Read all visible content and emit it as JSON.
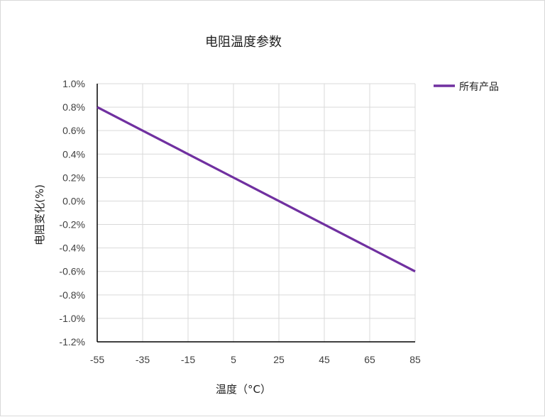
{
  "chart_data": {
    "type": "line",
    "title": "电阻温度参数",
    "xlabel": "温度（°C）",
    "ylabel": "电阻变化(%)",
    "x": [
      -55,
      -35,
      -15,
      5,
      25,
      45,
      65,
      85
    ],
    "x_tick_labels": [
      "-55",
      "-35",
      "-15",
      "5",
      "25",
      "45",
      "65",
      "85"
    ],
    "xlim": [
      -55,
      85
    ],
    "ylim": [
      -1.2,
      1.0
    ],
    "y_ticks": [
      1.0,
      0.8,
      0.6,
      0.4,
      0.2,
      0.0,
      -0.2,
      -0.4,
      -0.6,
      -0.8,
      -1.0,
      -1.2
    ],
    "y_tick_labels": [
      "1.0%",
      "0.8%",
      "0.6%",
      "0.4%",
      "0.2%",
      "0.0%",
      "-0.2%",
      "-0.4%",
      "-0.6%",
      "-0.8%",
      "-1.0%",
      "-1.2%"
    ],
    "grid": true,
    "legend_position": "top-right",
    "series": [
      {
        "name": "所有产品",
        "color": "#7030a0",
        "values": [
          0.8,
          0.6,
          0.4,
          0.2,
          0.0,
          -0.2,
          -0.4,
          -0.6
        ]
      }
    ]
  }
}
